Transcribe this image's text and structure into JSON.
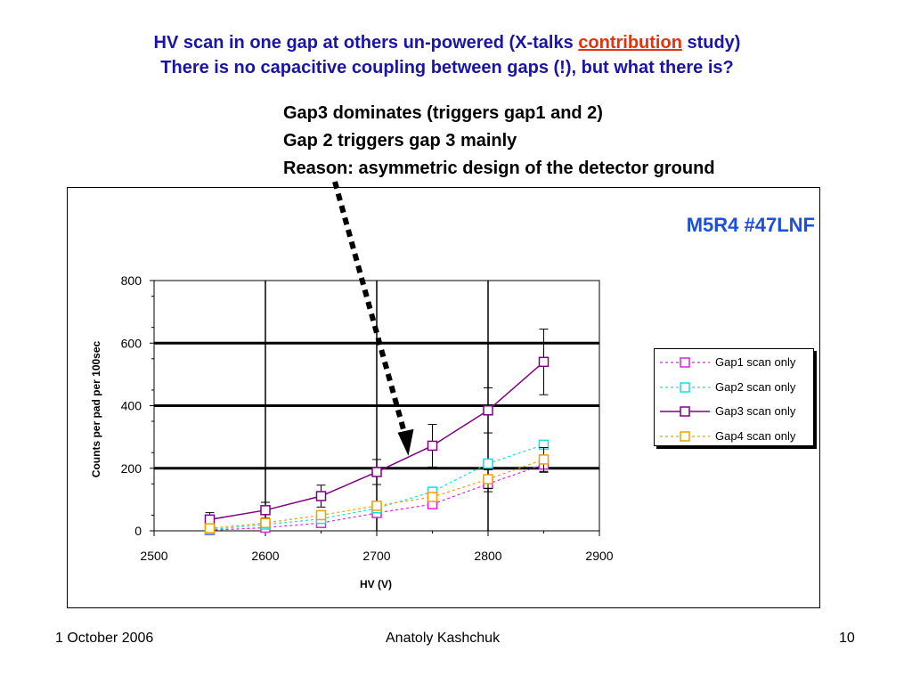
{
  "slide": {
    "title_line1_a": "HV scan in one gap at others un-powered (X-talks ",
    "title_line1_highlight": "contribution",
    "title_line1_b": " study)",
    "title_line2": "There is no capacitive coupling  between gaps (!), but what there is?",
    "notes": [
      "Gap3 dominates (triggers gap1 and 2)",
      "Gap 2 triggers gap 3 mainly",
      "Reason: asymmetric design of the detector ground"
    ],
    "chart_id_label": "M5R4 #47LNF",
    "footer": {
      "date": "1 October 2006",
      "author": "Anatoly Kashchuk",
      "page": "10"
    }
  },
  "chart_data": {
    "type": "line",
    "xlabel": "HV (V)",
    "ylabel": "Counts  per pad per 100sec",
    "xlim": [
      2500,
      2900
    ],
    "ylim": [
      0,
      800
    ],
    "xticks": [
      "2500",
      "2600",
      "2700",
      "2800",
      "2900"
    ],
    "yticks": [
      "0",
      "200",
      "400",
      "600",
      "800"
    ],
    "grid": true,
    "legend_position": "right",
    "series": [
      {
        "name": "Gap1 scan only",
        "color": "#e020e0",
        "line_style": "dotted",
        "marker": "open-square",
        "x": [
          2550,
          2600,
          2650,
          2700,
          2750,
          2800,
          2850
        ],
        "y": [
          2,
          10,
          25,
          57,
          85,
          150,
          212
        ],
        "err": [
          0,
          0,
          0,
          0,
          0,
          25,
          25
        ]
      },
      {
        "name": "Gap2 scan only",
        "color": "#10e0e0",
        "line_style": "dotted",
        "marker": "open-square",
        "x": [
          2550,
          2600,
          2650,
          2700,
          2750,
          2800,
          2850
        ],
        "y": [
          4,
          20,
          38,
          72,
          125,
          215,
          275
        ],
        "err": [
          0,
          0,
          0,
          0,
          0,
          0,
          0
        ]
      },
      {
        "name": "Gap3 scan only",
        "color": "#800080",
        "line_style": "solid",
        "marker": "open-square",
        "x": [
          2550,
          2600,
          2650,
          2700,
          2750,
          2800,
          2850
        ],
        "y": [
          36,
          66,
          111,
          188,
          272,
          385,
          540
        ],
        "err": [
          22,
          25,
          35,
          40,
          68,
          72,
          105
        ]
      },
      {
        "name": "Gap4 scan only",
        "color": "#f0a000",
        "line_style": "dotted",
        "marker": "open-square",
        "x": [
          2550,
          2600,
          2650,
          2700,
          2750,
          2800,
          2850
        ],
        "y": [
          8,
          25,
          50,
          80,
          108,
          165,
          228
        ],
        "err": [
          0,
          0,
          0,
          0,
          0,
          30,
          38
        ]
      }
    ],
    "annotation_arrow": {
      "from_label": "notes",
      "to_x": 2730,
      "to_y": 240
    }
  }
}
